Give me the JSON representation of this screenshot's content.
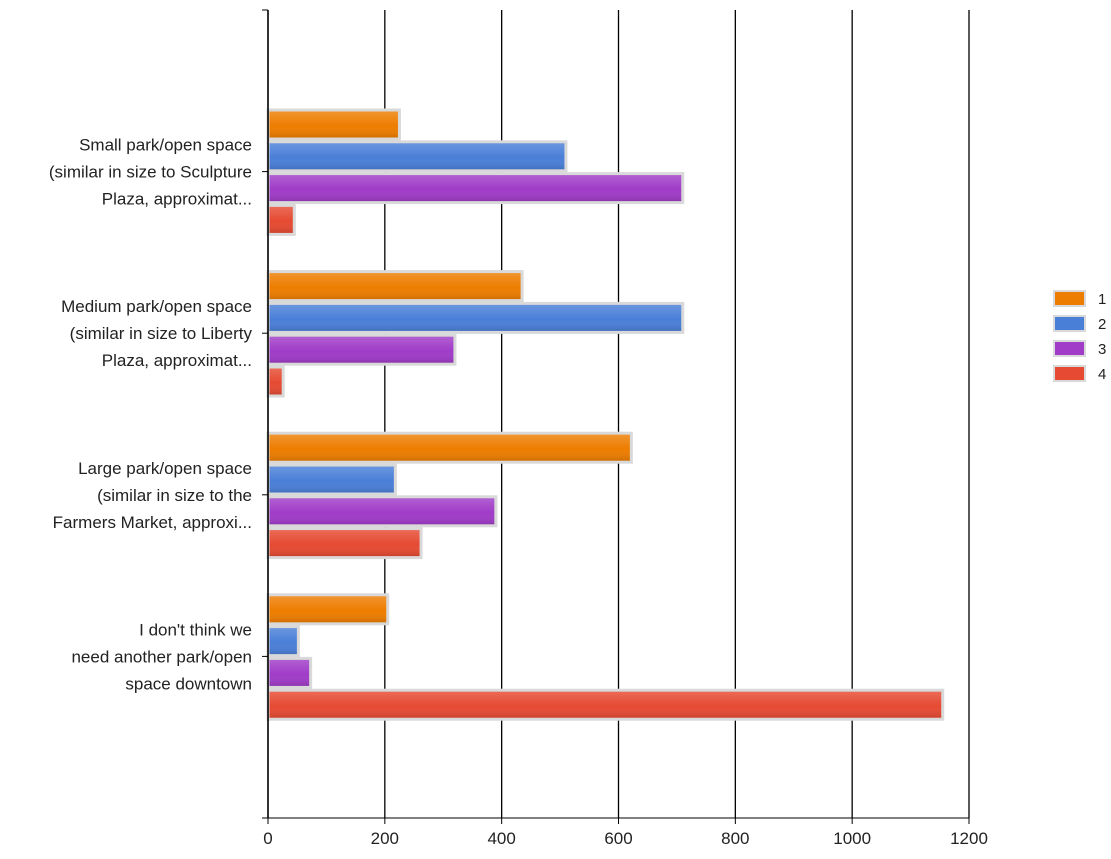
{
  "chart_data": {
    "type": "bar",
    "orientation": "horizontal",
    "categories": [
      [
        "Small park/open space",
        "(similar in size to Sculpture",
        "Plaza, approximat..."
      ],
      [
        "Medium park/open space",
        "(similar in size to Liberty",
        "Plaza, approximat..."
      ],
      [
        "Large park/open space",
        "(similar in size to the",
        "Farmers Market, approxi..."
      ],
      [
        "I don't think we",
        "need another park/open",
        "space downtown"
      ]
    ],
    "series": [
      {
        "name": "1",
        "color": "#ED7D00",
        "values": [
          225,
          435,
          622,
          205
        ]
      },
      {
        "name": "2",
        "color": "#4A7FD8",
        "values": [
          510,
          710,
          218,
          52
        ]
      },
      {
        "name": "3",
        "color": "#A03CC8",
        "values": [
          710,
          320,
          390,
          73
        ]
      },
      {
        "name": "4",
        "color": "#E64A32",
        "values": [
          45,
          26,
          262,
          1155
        ]
      }
    ],
    "xlim": [
      0,
      1200
    ],
    "xticks": [
      "0",
      "200",
      "400",
      "600",
      "800",
      "1000",
      "1200"
    ],
    "grid": "vertical",
    "legend_position": "right",
    "title": "",
    "xlabel": "",
    "ylabel": ""
  }
}
